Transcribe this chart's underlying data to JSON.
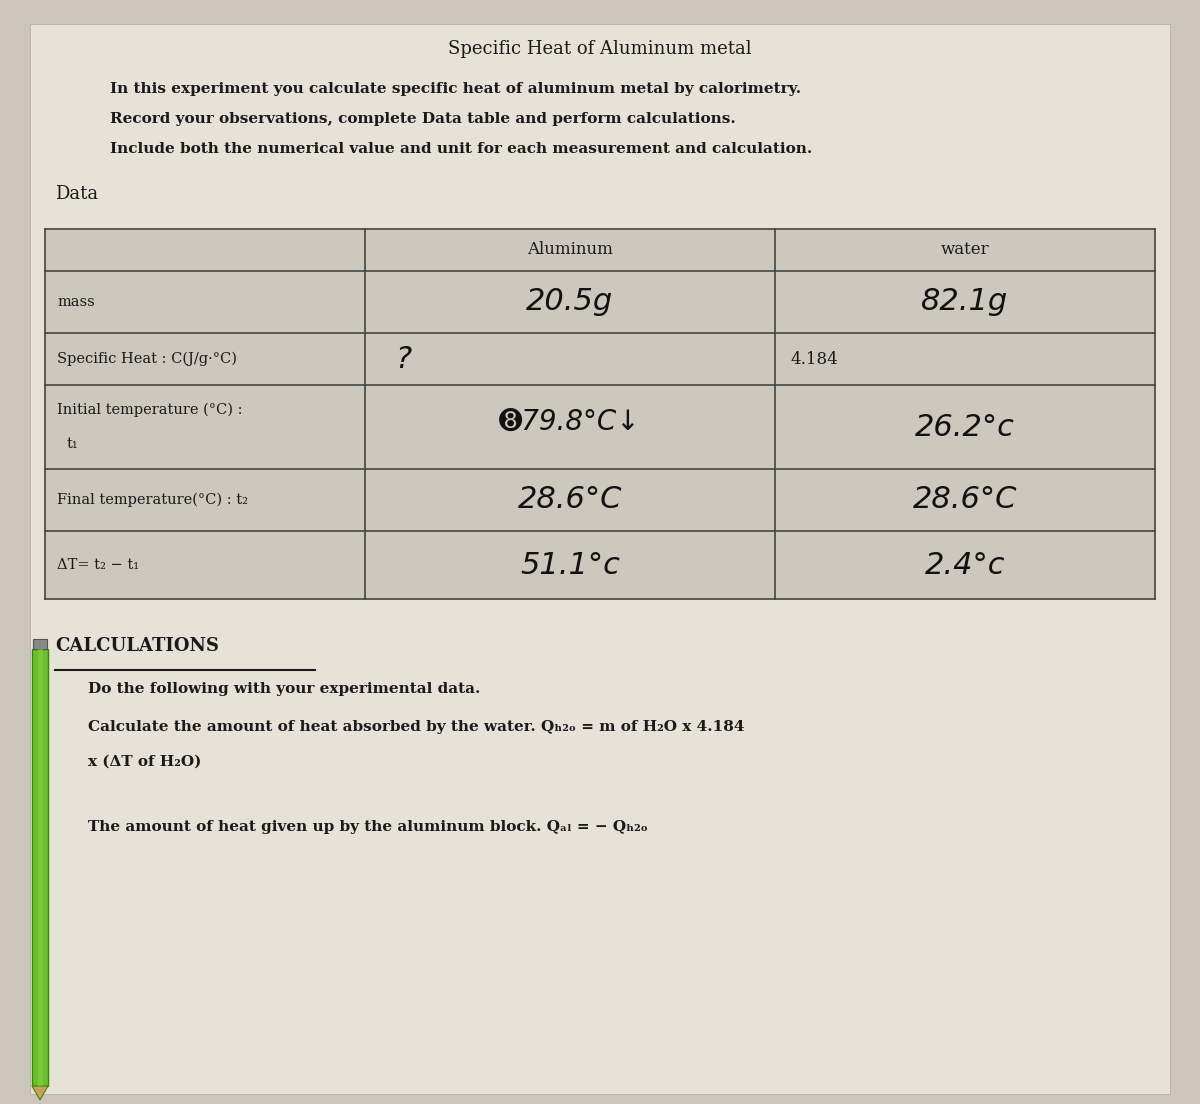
{
  "title": "Specific Heat of Aluminum metal",
  "intro_lines": [
    "In this experiment you calculate specific heat of aluminum metal by calorimetry.",
    "Record your observations, complete Data table and perform calculations.",
    "Include both the numerical value and unit for each measurement and calculation."
  ],
  "data_label": "Data",
  "col_headers": [
    "",
    "Aluminum",
    "water"
  ],
  "row_label_0": "mass",
  "row_label_1": "Specific Heat : C(J/g·°C)",
  "row_label_2a": "Initial temperature (°C) :",
  "row_label_2b": "t₁",
  "row_label_3": "Final temperature(°C) : t₂",
  "row_label_4": "ΔT= t₂ − t₁",
  "al_mass": "20.5g",
  "al_specific_heat": "?",
  "al_init_temp": "➑79.8°C↓",
  "al_final_temp": "28.6°C",
  "al_delta_t": "51.1°c",
  "w_mass": "82.1g",
  "w_specific_heat": "4.184",
  "w_init_temp": "26.2°c",
  "w_final_temp": "28.6°C",
  "w_delta_t": "2.4°c",
  "calc_title": "CALCULATIONS",
  "calc_line1": "Do the following with your experimental data.",
  "calc_line2": "Calculate the amount of heat absorbed by the water. Qₕ₂ₒ = m of H₂O x 4.184",
  "calc_line3": "x (ΔT of H₂O)",
  "calc_line4": "The amount of heat given up by the aluminum block. Qₐₗ = − Qₕ₂ₒ",
  "bg_color": "#cbc5bb",
  "paper_color": "#e6e2d8",
  "table_bg": "#ccc8be",
  "line_color": "#444444",
  "text_color": "#1a1a1a",
  "handwritten_color": "#111111",
  "pencil_green": "#6abf2e",
  "pencil_dark": "#3a8a00",
  "pencil_tip": "#c8a060",
  "pencil_cap": "#888888"
}
